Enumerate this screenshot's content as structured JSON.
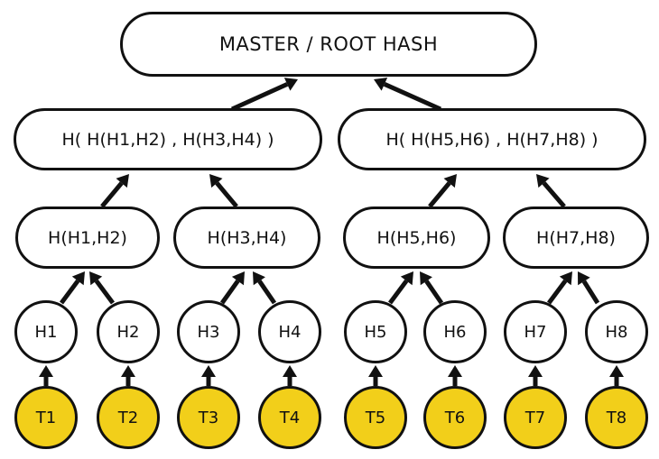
{
  "root": {
    "label": "MASTER / ROOT HASH"
  },
  "level1": [
    {
      "label": "H( H(H1,H2) , H(H3,H4) )"
    },
    {
      "label": "H( H(H5,H6) , H(H7,H8) )"
    }
  ],
  "level2": [
    {
      "label": "H(H1,H2)"
    },
    {
      "label": "H(H3,H4)"
    },
    {
      "label": "H(H5,H6)"
    },
    {
      "label": "H(H7,H8)"
    }
  ],
  "hashes": [
    {
      "label": "H1"
    },
    {
      "label": "H2"
    },
    {
      "label": "H3"
    },
    {
      "label": "H4"
    },
    {
      "label": "H5"
    },
    {
      "label": "H6"
    },
    {
      "label": "H7"
    },
    {
      "label": "H8"
    }
  ],
  "transactions": [
    {
      "label": "T1"
    },
    {
      "label": "T2"
    },
    {
      "label": "T3"
    },
    {
      "label": "T4"
    },
    {
      "label": "T5"
    },
    {
      "label": "T6"
    },
    {
      "label": "T7"
    },
    {
      "label": "T8"
    }
  ],
  "colors": {
    "transaction_fill": "#f2cf1a",
    "node_fill": "#ffffff",
    "stroke": "#111111"
  }
}
